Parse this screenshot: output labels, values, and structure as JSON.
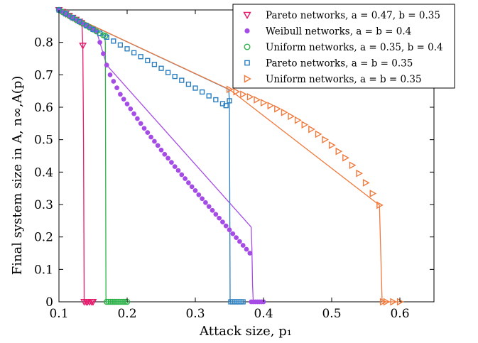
{
  "chart_data": {
    "type": "line",
    "xlabel": "Attack size, p₁",
    "ylabel": "Final system size in A, n∞,A(p)",
    "xlim": [
      0.1,
      0.65
    ],
    "ylim": [
      0,
      0.9
    ],
    "xticks": [
      0.1,
      0.2,
      0.3,
      0.4,
      0.5,
      0.6
    ],
    "xtick_labels": [
      "0.1",
      "0.2",
      "0.3",
      "0.4",
      "0.5",
      "0.6"
    ],
    "yticks": [
      0,
      0.1,
      0.2,
      0.3,
      0.4,
      0.5,
      0.6,
      0.7,
      0.8
    ],
    "ytick_labels": [
      "0",
      "0.1",
      "0.2",
      "0.3",
      "0.4",
      "0.5",
      "0.6",
      "0.7",
      "0.8"
    ],
    "grid": false,
    "legend_position": "top-right",
    "series": [
      {
        "name": "Pareto networks, a = 0.47, b = 0.35",
        "color": "#e6196b",
        "marker": "triangle-down",
        "x": [
          0.1,
          0.105,
          0.11,
          0.115,
          0.12,
          0.125,
          0.13,
          0.133,
          0.135,
          0.137,
          0.14,
          0.142,
          0.145,
          0.148,
          0.15
        ],
        "y": [
          0.9,
          0.894,
          0.888,
          0.882,
          0.876,
          0.87,
          0.864,
          0.86,
          0.79,
          0.0,
          0.0,
          0.0,
          0.0,
          0.0,
          0.0
        ],
        "curve_x": [
          0.1,
          0.133,
          0.134,
          0.135,
          0.136,
          0.137,
          0.15
        ],
        "curve_y": [
          0.9,
          0.86,
          0.85,
          0.79,
          0.5,
          0.0,
          0.0
        ]
      },
      {
        "name": "Weibull networks, a = b = 0.4",
        "color": "#a64ce6",
        "marker": "circle-filled",
        "x": [
          0.1,
          0.105,
          0.11,
          0.115,
          0.12,
          0.125,
          0.13,
          0.135,
          0.14,
          0.145,
          0.15,
          0.155,
          0.16,
          0.165,
          0.17,
          0.175,
          0.18,
          0.185,
          0.19,
          0.195,
          0.2,
          0.205,
          0.21,
          0.215,
          0.22,
          0.225,
          0.23,
          0.235,
          0.24,
          0.245,
          0.25,
          0.255,
          0.26,
          0.265,
          0.27,
          0.275,
          0.28,
          0.285,
          0.29,
          0.295,
          0.3,
          0.305,
          0.31,
          0.315,
          0.32,
          0.325,
          0.33,
          0.335,
          0.34,
          0.345,
          0.35,
          0.355,
          0.36,
          0.365,
          0.37,
          0.375,
          0.38,
          0.382,
          0.385,
          0.388,
          0.391,
          0.394,
          0.397,
          0.4
        ],
        "y": [
          0.9,
          0.894,
          0.888,
          0.882,
          0.876,
          0.87,
          0.864,
          0.858,
          0.852,
          0.846,
          0.84,
          0.834,
          0.8,
          0.765,
          0.73,
          0.7,
          0.68,
          0.66,
          0.64,
          0.625,
          0.61,
          0.595,
          0.58,
          0.565,
          0.55,
          0.535,
          0.522,
          0.508,
          0.495,
          0.482,
          0.468,
          0.455,
          0.443,
          0.43,
          0.417,
          0.405,
          0.392,
          0.38,
          0.367,
          0.355,
          0.343,
          0.33,
          0.318,
          0.306,
          0.294,
          0.282,
          0.27,
          0.258,
          0.246,
          0.234,
          0.222,
          0.21,
          0.198,
          0.186,
          0.174,
          0.162,
          0.15,
          0.0,
          0.0,
          0.0,
          0.0,
          0.0,
          0.0,
          0.0
        ],
        "curve_x": [
          0.1,
          0.155,
          0.16,
          0.165,
          0.17,
          0.38,
          0.382,
          0.383,
          0.384,
          0.385,
          0.4
        ],
        "curve_y": [
          0.9,
          0.834,
          0.8,
          0.765,
          0.73,
          0.235,
          0.23,
          0.16,
          0.05,
          0.0,
          0.0
        ]
      },
      {
        "name": "Uniform networks, a = 0.35, b = 0.4",
        "color": "#2fb24a",
        "marker": "circle-open",
        "x": [
          0.1,
          0.105,
          0.11,
          0.115,
          0.12,
          0.125,
          0.13,
          0.135,
          0.14,
          0.145,
          0.15,
          0.155,
          0.16,
          0.165,
          0.168,
          0.17,
          0.173,
          0.176,
          0.179,
          0.182,
          0.185,
          0.188,
          0.191,
          0.194,
          0.197,
          0.2
        ],
        "y": [
          0.9,
          0.894,
          0.888,
          0.882,
          0.876,
          0.87,
          0.864,
          0.858,
          0.852,
          0.846,
          0.84,
          0.834,
          0.828,
          0.822,
          0.82,
          0.0,
          0.0,
          0.0,
          0.0,
          0.0,
          0.0,
          0.0,
          0.0,
          0.0,
          0.0,
          0.0
        ],
        "curve_x": [
          0.1,
          0.167,
          0.168,
          0.169,
          0.2
        ],
        "curve_y": [
          0.9,
          0.822,
          0.8,
          0.0,
          0.0
        ]
      },
      {
        "name": "Pareto networks, a = b = 0.35",
        "color": "#2a7fc1",
        "marker": "square-open",
        "x": [
          0.1,
          0.11,
          0.12,
          0.13,
          0.14,
          0.15,
          0.16,
          0.17,
          0.18,
          0.19,
          0.2,
          0.21,
          0.22,
          0.23,
          0.24,
          0.25,
          0.26,
          0.27,
          0.28,
          0.29,
          0.3,
          0.31,
          0.32,
          0.33,
          0.34,
          0.345,
          0.35,
          0.352,
          0.355,
          0.358,
          0.361,
          0.364,
          0.367,
          0.37
        ],
        "y": [
          0.9,
          0.888,
          0.876,
          0.864,
          0.852,
          0.84,
          0.828,
          0.816,
          0.804,
          0.792,
          0.78,
          0.768,
          0.756,
          0.744,
          0.732,
          0.72,
          0.707,
          0.695,
          0.683,
          0.671,
          0.659,
          0.647,
          0.635,
          0.623,
          0.611,
          0.605,
          0.62,
          0.0,
          0.0,
          0.0,
          0.0,
          0.0,
          0.0,
          0.0
        ],
        "curve_x": [
          0.1,
          0.349,
          0.35,
          0.351,
          0.37
        ],
        "curve_y": [
          0.9,
          0.655,
          0.62,
          0.0,
          0.0
        ]
      },
      {
        "name": "Uniform networks, a = b = 0.35",
        "color": "#f0793b",
        "marker": "triangle-right",
        "x": [
          0.35,
          0.36,
          0.37,
          0.38,
          0.39,
          0.4,
          0.41,
          0.42,
          0.43,
          0.44,
          0.45,
          0.46,
          0.47,
          0.48,
          0.49,
          0.5,
          0.51,
          0.52,
          0.53,
          0.54,
          0.55,
          0.56,
          0.57,
          0.575,
          0.58,
          0.59,
          0.6
        ],
        "y": [
          0.655,
          0.648,
          0.64,
          0.632,
          0.623,
          0.614,
          0.605,
          0.595,
          0.584,
          0.572,
          0.56,
          0.546,
          0.532,
          0.517,
          0.5,
          0.483,
          0.464,
          0.444,
          0.421,
          0.396,
          0.367,
          0.334,
          0.298,
          0.0,
          0.0,
          0.0,
          0.0
        ],
        "curve_x": [
          0.1,
          0.35,
          0.57,
          0.572,
          0.574,
          0.6
        ],
        "curve_y": [
          0.9,
          0.655,
          0.298,
          0.15,
          0.0,
          0.0
        ]
      }
    ]
  }
}
